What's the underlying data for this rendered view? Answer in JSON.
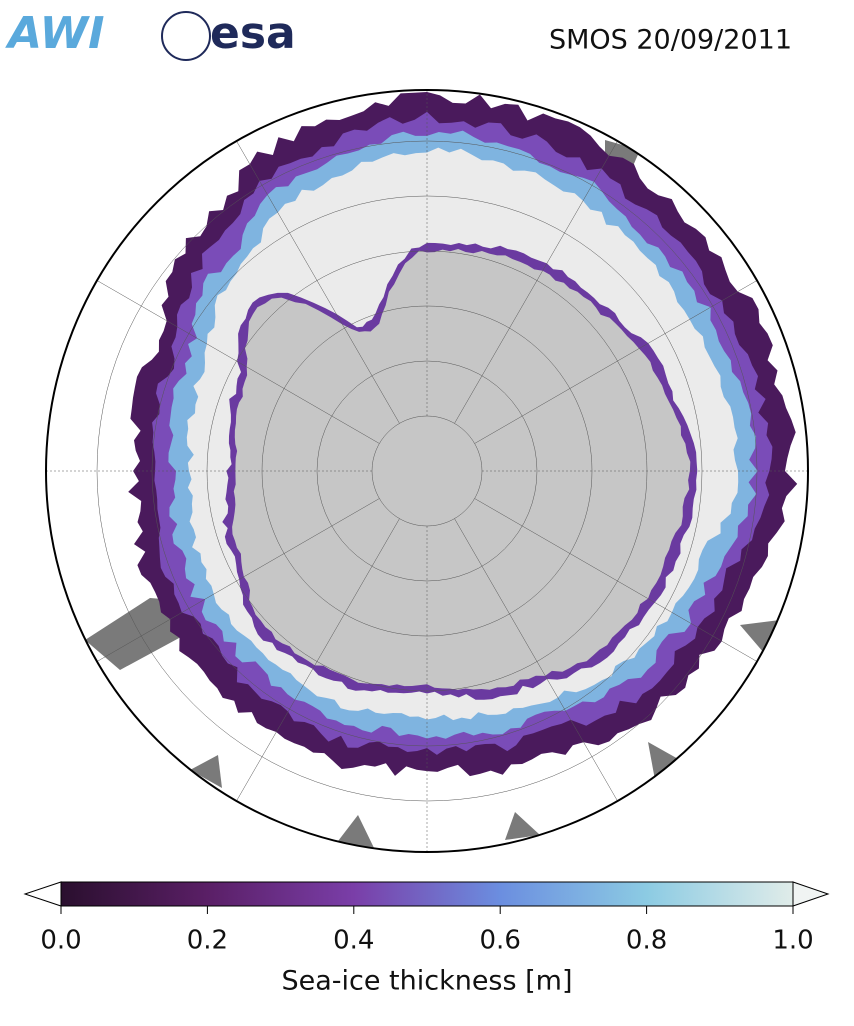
{
  "logos": {
    "awi": "AWI",
    "esa": "esa"
  },
  "title": "SMOS 20/09/2011",
  "colorbar": {
    "label": "Sea-ice thickness [m]",
    "clim": [
      0,
      1
    ],
    "ticks": [
      {
        "value": 0,
        "label": "0.0"
      },
      {
        "value": 0.2,
        "label": "0.2"
      },
      {
        "value": 0.4,
        "label": "0.4"
      },
      {
        "value": 0.6,
        "label": "0.6"
      },
      {
        "value": 0.8,
        "label": "0.8"
      },
      {
        "value": 1,
        "label": "1.0"
      }
    ]
  }
}
